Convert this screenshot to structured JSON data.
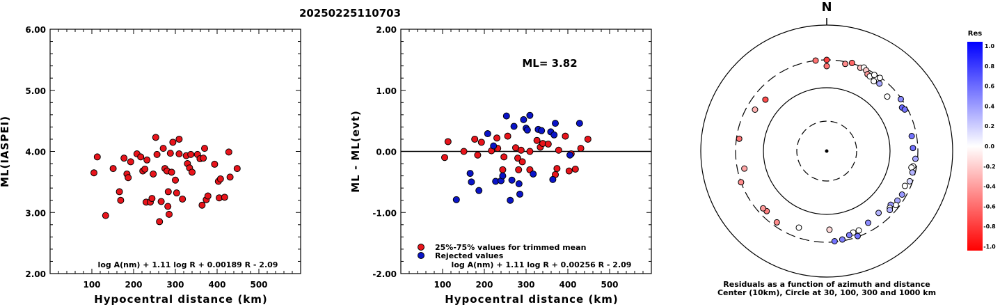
{
  "title": "20250225110703",
  "chart_data": [
    {
      "type": "scatter",
      "xlabel": "Hypocentral distance (km)",
      "ylabel": "ML(IASPEI)",
      "xlim": [
        0,
        600
      ],
      "ylim": [
        2.0,
        6.0
      ],
      "x_ticks": [
        "100",
        "200",
        "300",
        "400",
        "500"
      ],
      "y_ticks": [
        "2.00",
        "3.00",
        "4.00",
        "5.00",
        "6.00"
      ],
      "formula": "log A(nm) + 1.11 log R + 0.00189 R - 2.09",
      "point_color": "#e8141b",
      "points": [
        [
          105,
          3.65
        ],
        [
          113,
          3.91
        ],
        [
          133,
          2.95
        ],
        [
          151,
          3.72
        ],
        [
          166,
          3.34
        ],
        [
          169,
          3.2
        ],
        [
          177,
          3.89
        ],
        [
          184,
          3.63
        ],
        [
          187,
          3.57
        ],
        [
          193,
          3.83
        ],
        [
          208,
          3.96
        ],
        [
          217,
          3.91
        ],
        [
          222,
          3.68
        ],
        [
          227,
          3.71
        ],
        [
          230,
          3.17
        ],
        [
          232,
          3.86
        ],
        [
          240,
          3.17
        ],
        [
          244,
          3.23
        ],
        [
          247,
          3.63
        ],
        [
          253,
          4.23
        ],
        [
          256,
          3.95
        ],
        [
          262,
          2.85
        ],
        [
          266,
          3.18
        ],
        [
          271,
          4.05
        ],
        [
          275,
          3.72
        ],
        [
          280,
          3.68
        ],
        [
          282,
          3.1
        ],
        [
          283,
          3.34
        ],
        [
          285,
          2.97
        ],
        [
          288,
          3.97
        ],
        [
          291,
          3.66
        ],
        [
          294,
          4.15
        ],
        [
          300,
          3.53
        ],
        [
          303,
          3.32
        ],
        [
          309,
          4.2
        ],
        [
          309,
          3.96
        ],
        [
          317,
          3.22
        ],
        [
          326,
          3.93
        ],
        [
          329,
          3.8
        ],
        [
          334,
          3.73
        ],
        [
          337,
          3.95
        ],
        [
          340,
          3.66
        ],
        [
          353,
          3.95
        ],
        [
          359,
          3.88
        ],
        [
          364,
          3.12
        ],
        [
          367,
          3.89
        ],
        [
          370,
          4.05
        ],
        [
          374,
          3.21
        ],
        [
          378,
          3.27
        ],
        [
          394,
          3.79
        ],
        [
          403,
          3.51
        ],
        [
          405,
          3.24
        ],
        [
          408,
          3.55
        ],
        [
          418,
          3.25
        ],
        [
          428,
          3.99
        ],
        [
          431,
          3.58
        ],
        [
          448,
          3.72
        ]
      ]
    },
    {
      "type": "scatter",
      "xlabel": "Hypocentral distance (km)",
      "ylabel": "ML - ML(evt)",
      "xlim": [
        0,
        600
      ],
      "ylim": [
        -2.0,
        2.0
      ],
      "x_ticks": [
        "100",
        "200",
        "300",
        "400",
        "500"
      ],
      "y_ticks": [
        "-2.00",
        "-1.00",
        "0.00",
        "1.00",
        "2.00"
      ],
      "annotation": "ML= 3.82",
      "formula": "log A(nm) + 1.11 log R + 0.00256 R - 2.09",
      "legend": [
        {
          "label": "25%-75% values for trimmed mean",
          "color": "#e8141b"
        },
        {
          "label": "Rejected values",
          "color": "#0a14c8"
        }
      ],
      "series": [
        {
          "name": "25%-75% values for trimmed mean",
          "color": "#e8141b",
          "points": [
            [
              105,
              -0.1
            ],
            [
              113,
              0.16
            ],
            [
              151,
              0.0
            ],
            [
              177,
              0.2
            ],
            [
              184,
              -0.06
            ],
            [
              193,
              0.15
            ],
            [
              217,
              0.01
            ],
            [
              230,
              0.22
            ],
            [
              232,
              0.05
            ],
            [
              244,
              -0.3
            ],
            [
              247,
              -0.09
            ],
            [
              256,
              0.25
            ],
            [
              275,
              0.06
            ],
            [
              280,
              -0.11
            ],
            [
              282,
              -0.3
            ],
            [
              288,
              0.02
            ],
            [
              291,
              -0.17
            ],
            [
              309,
              0.0
            ],
            [
              309,
              -0.3
            ],
            [
              326,
              0.18
            ],
            [
              334,
              0.07
            ],
            [
              340,
              0.13
            ],
            [
              353,
              0.12
            ],
            [
              370,
              -0.38
            ],
            [
              374,
              -0.28
            ],
            [
              378,
              0.02
            ],
            [
              394,
              0.25
            ],
            [
              403,
              -0.32
            ],
            [
              408,
              -0.04
            ],
            [
              418,
              -0.29
            ],
            [
              431,
              0.05
            ],
            [
              448,
              0.2
            ]
          ]
        },
        {
          "name": "Rejected values",
          "color": "#0a14c8",
          "points": [
            [
              133,
              -0.79
            ],
            [
              166,
              -0.36
            ],
            [
              169,
              -0.5
            ],
            [
              187,
              -0.64
            ],
            [
              208,
              0.29
            ],
            [
              222,
              0.09
            ],
            [
              227,
              -0.49
            ],
            [
              240,
              -0.48
            ],
            [
              244,
              -0.4
            ],
            [
              253,
              0.58
            ],
            [
              262,
              -0.8
            ],
            [
              266,
              -0.47
            ],
            [
              271,
              0.41
            ],
            [
              283,
              -0.53
            ],
            [
              285,
              -0.7
            ],
            [
              294,
              0.52
            ],
            [
              300,
              0.38
            ],
            [
              303,
              0.35
            ],
            [
              309,
              0.59
            ],
            [
              317,
              -0.37
            ],
            [
              329,
              0.36
            ],
            [
              337,
              0.34
            ],
            [
              359,
              0.32
            ],
            [
              364,
              -0.46
            ],
            [
              367,
              0.27
            ],
            [
              370,
              0.46
            ],
            [
              405,
              -0.06
            ],
            [
              428,
              0.46
            ]
          ]
        }
      ]
    },
    {
      "type": "polar",
      "north_label": "N",
      "caption_line1": "Residuals as a function of azimuth and distance",
      "caption_line2": "Center (10km), Circle at 30, 100, 300 and 1000 km",
      "colorbar_title": "Res",
      "colorbar_ticks": [
        "1.0",
        "0.8",
        "0.6",
        "0.4",
        "0.2",
        "0.0",
        "-0.2",
        "-0.4",
        "-0.6",
        "-0.8",
        "-1.0"
      ],
      "points": [
        {
          "az": 353,
          "dist": 300,
          "res": -0.55
        },
        {
          "az": 0,
          "dist": 300,
          "res": -0.75
        },
        {
          "az": 0,
          "dist": 255,
          "res": -0.55
        },
        {
          "az": 12,
          "dist": 285,
          "res": -0.45
        },
        {
          "az": 16,
          "dist": 310,
          "res": -0.6
        },
        {
          "az": 22,
          "dist": 290,
          "res": -0.25
        },
        {
          "az": 24,
          "dist": 305,
          "res": 0.0
        },
        {
          "az": 26,
          "dist": 290,
          "res": -0.2
        },
        {
          "az": 28,
          "dist": 270,
          "res": -0.4
        },
        {
          "az": 30,
          "dist": 265,
          "res": 0.0
        },
        {
          "az": 32,
          "dist": 290,
          "res": 0.0
        },
        {
          "az": 36,
          "dist": 295,
          "res": 0.0
        },
        {
          "az": 34,
          "dist": 250,
          "res": 0.0
        },
        {
          "az": 38,
          "dist": 260,
          "res": 0.35
        },
        {
          "az": 48,
          "dist": 230,
          "res": 0.0
        },
        {
          "az": 55,
          "dist": 295,
          "res": 0.45
        },
        {
          "az": 60,
          "dist": 270,
          "res": 0.6
        },
        {
          "az": 62,
          "dist": 280,
          "res": 0.55
        },
        {
          "az": 80,
          "dist": 265,
          "res": 0.55
        },
        {
          "az": 88,
          "dist": 265,
          "res": 0.55
        },
        {
          "az": 95,
          "dist": 285,
          "res": 0.35
        },
        {
          "az": 100,
          "dist": 275,
          "res": 0.0
        },
        {
          "az": 101,
          "dist": 265,
          "res": 0.0
        },
        {
          "az": 104,
          "dist": 280,
          "res": 0.3
        },
        {
          "az": 110,
          "dist": 280,
          "res": 0.15
        },
        {
          "az": 114,
          "dist": 260,
          "res": 0.0
        },
        {
          "az": 120,
          "dist": 270,
          "res": 0.4
        },
        {
          "az": 125,
          "dist": 265,
          "res": 0.35
        },
        {
          "az": 128,
          "dist": 275,
          "res": 0.0
        },
        {
          "az": 130,
          "dist": 245,
          "res": 0.4
        },
        {
          "az": 132,
          "dist": 255,
          "res": 0.0
        },
        {
          "az": 133,
          "dist": 265,
          "res": 0.3
        },
        {
          "az": 140,
          "dist": 225,
          "res": 0.3
        },
        {
          "az": 150,
          "dist": 240,
          "res": 0.45
        },
        {
          "az": 158,
          "dist": 260,
          "res": 0.0
        },
        {
          "az": 162,
          "dist": 260,
          "res": 0.0
        },
        {
          "az": 165,
          "dist": 270,
          "res": 0.5
        },
        {
          "az": 170,
          "dist": 290,
          "res": 0.5
        },
        {
          "az": 175,
          "dist": 295,
          "res": 0.55
        },
        {
          "az": 160,
          "dist": 295,
          "res": 0.55
        },
        {
          "az": 178,
          "dist": 210,
          "res": -0.15
        },
        {
          "az": 200,
          "dist": 230,
          "res": 0.0
        },
        {
          "az": 215,
          "dist": 270,
          "res": -0.45
        },
        {
          "az": 225,
          "dist": 255,
          "res": -0.5
        },
        {
          "az": 228,
          "dist": 260,
          "res": -0.4
        },
        {
          "az": 250,
          "dist": 300,
          "res": -0.45
        },
        {
          "az": 258,
          "dist": 250,
          "res": -0.35
        },
        {
          "az": 278,
          "dist": 280,
          "res": -0.55
        },
        {
          "az": 300,
          "dist": 240,
          "res": -0.3
        },
        {
          "az": 310,
          "dist": 220,
          "res": -0.7
        }
      ]
    }
  ]
}
